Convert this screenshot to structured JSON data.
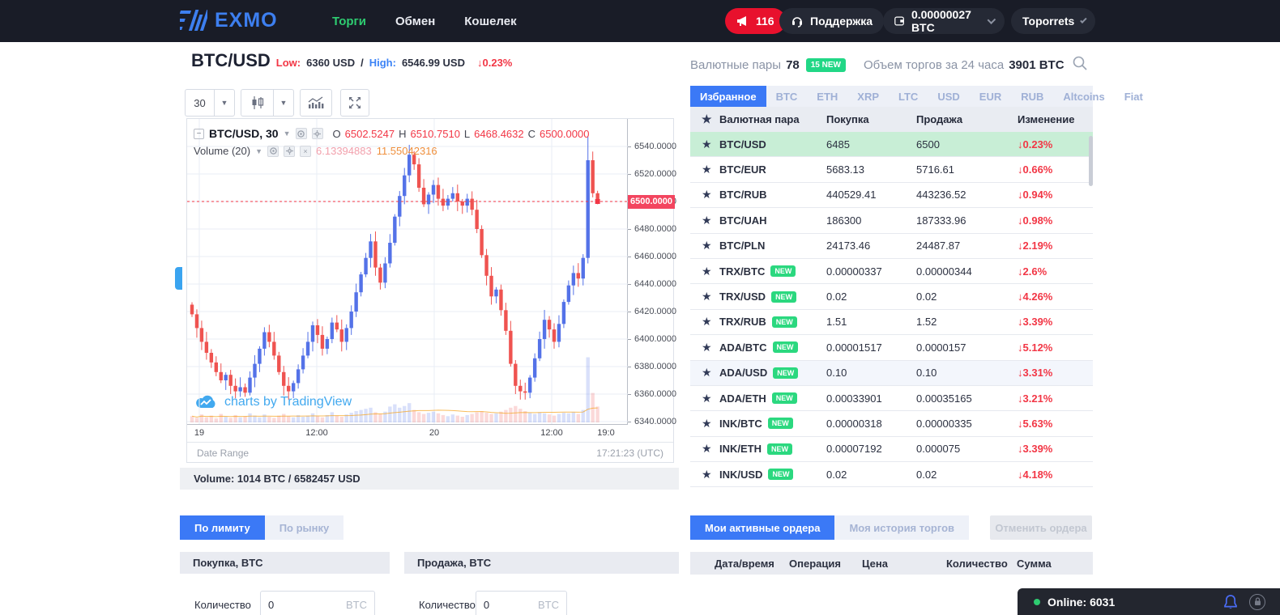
{
  "header": {
    "brand": "EXMO",
    "nav": [
      {
        "label": "Торги",
        "active": true
      },
      {
        "label": "Обмен",
        "active": false
      },
      {
        "label": "Кошелек",
        "active": false
      }
    ],
    "notification_count": "116",
    "support_label": "Поддержка",
    "wallet_balance": "0.00000027 BTC",
    "username": "Toporrets"
  },
  "pair_header": {
    "pair": "BTC/USD",
    "low_label": "Low:",
    "low_value": "6360 USD",
    "separator": "/",
    "high_label": "High:",
    "high_value": "6546.99 USD",
    "change": "↓0.23%"
  },
  "chart": {
    "toolbar": {
      "interval": "30"
    },
    "legend": {
      "title": "BTC/USD, 30",
      "o_label": "O",
      "o": "6502.5247",
      "h_label": "H",
      "h": "6510.7510",
      "l_label": "L",
      "l": "6468.4632",
      "c_label": "C",
      "c": "6500.0000",
      "volume_label": "Volume (20)",
      "volume_value_1": "6.13394883",
      "volume_value_2": "11.55042316"
    },
    "watermark": "charts by TradingView",
    "footer_left": "Date Range",
    "footer_right": "17:21:23 (UTC)",
    "last_price_label": "6500.0000"
  },
  "chart_data": {
    "type": "candlestick",
    "pair": "BTC/USD",
    "interval_minutes": 30,
    "y_axis": {
      "min": 6340,
      "max": 6540,
      "step": 20,
      "tick_labels": [
        "6540.0000",
        "6520.0000",
        "6500.0000",
        "6480.0000",
        "6460.0000",
        "6440.0000",
        "6420.0000",
        "6400.0000",
        "6380.0000",
        "6360.0000",
        "6340.0000"
      ]
    },
    "x_axis": {
      "tick_labels": [
        "19",
        "12:00",
        "20",
        "12:00",
        "19:0"
      ],
      "tick_positions": [
        15,
        160,
        305,
        450,
        517
      ]
    },
    "last_price": 6500,
    "open_first": 6425,
    "closes": [
      6418,
      6408,
      6398,
      6390,
      6383,
      6376,
      6370,
      6374,
      6366,
      6362,
      6365,
      6361,
      6372,
      6382,
      6393,
      6405,
      6398,
      6388,
      6376,
      6366,
      6362,
      6368,
      6378,
      6388,
      6398,
      6410,
      6403,
      6393,
      6400,
      6412,
      6407,
      6398,
      6408,
      6420,
      6434,
      6447,
      6459,
      6471,
      6452,
      6441,
      6455,
      6470,
      6489,
      6504,
      6519,
      6534,
      6527,
      6510,
      6498,
      6505,
      6512,
      6502,
      6497,
      6502,
      6506,
      6500,
      6497,
      6502,
      6494,
      6480,
      6461,
      6446,
      6431,
      6436,
      6421,
      6406,
      6382,
      6366,
      6362,
      6361,
      6372,
      6386,
      6400,
      6414,
      6407,
      6398,
      6411,
      6427,
      6439,
      6448,
      6444,
      6459,
      6530,
      6506,
      6500
    ],
    "volumes": [
      1.1,
      0.8,
      1.4,
      0.9,
      1.2,
      0.7,
      1.5,
      1.0,
      0.8,
      1.3,
      0.9,
      1.1,
      1.6,
      1.2,
      0.9,
      1.4,
      1.0,
      0.8,
      1.2,
      1.5,
      1.1,
      0.9,
      1.3,
      1.0,
      1.2,
      1.6,
      1.1,
      0.9,
      1.3,
      1.8,
      1.2,
      1.0,
      1.4,
      1.7,
      2.0,
      2.2,
      2.4,
      2.6,
      1.8,
      1.5,
      1.9,
      2.8,
      3.2,
      2.6,
      2.9,
      3.4,
      2.2,
      1.8,
      1.5,
      1.7,
      1.9,
      1.6,
      1.3,
      1.1,
      1.4,
      1.2,
      1.0,
      1.3,
      1.5,
      1.8,
      2.0,
      1.7,
      1.5,
      1.6,
      1.9,
      2.2,
      2.6,
      2.9,
      2.4,
      2.0,
      1.7,
      1.5,
      1.8,
      1.6,
      1.4,
      1.2,
      1.5,
      1.7,
      1.6,
      1.8,
      1.5,
      2.2,
      11.5,
      5.2,
      2.8
    ],
    "overrides": {
      "82": {
        "high": 6546.99
      },
      "67": {
        "low": 6360
      }
    },
    "colors": {
      "up": "#5472e8",
      "down": "#ef5350",
      "volume_up": "rgba(84,114,232,0.22)",
      "volume_down": "rgba(239,83,80,0.22)",
      "ma_line": "#f5a623",
      "last_price_line": "#f23645",
      "grid": "#e9eef5"
    }
  },
  "volume_summary": "Volume: 1014 BTC / 6582457 USD",
  "order_form": {
    "tabs": [
      {
        "label": "По лимиту",
        "active": true
      },
      {
        "label": "По рынку",
        "active": false
      }
    ],
    "buy_title": "Покупка, BTC",
    "sell_title": "Продажа, BTC",
    "quantity_label": "Количество",
    "quantity_value": "0",
    "unit": "BTC"
  },
  "pairs_panel": {
    "title": "Валютные пары",
    "count": "78",
    "new_badge": "15 NEW",
    "volume_label": "Объем торгов за 24 часа",
    "volume_value": "3901 BTC",
    "tabs": [
      {
        "label": "Избранное",
        "active": true
      },
      {
        "label": "BTC",
        "active": false
      },
      {
        "label": "ETH",
        "active": false
      },
      {
        "label": "XRP",
        "active": false
      },
      {
        "label": "LTC",
        "active": false
      },
      {
        "label": "USD",
        "active": false
      },
      {
        "label": "EUR",
        "active": false
      },
      {
        "label": "RUB",
        "active": false
      },
      {
        "label": "Altcoins",
        "active": false
      },
      {
        "label": "Fiat",
        "active": false
      }
    ],
    "columns": [
      "Валютная пара",
      "Покупка",
      "Продажа",
      "Изменение"
    ],
    "rows": [
      {
        "pair": "BTC/USD",
        "new": false,
        "buy": "6485",
        "sell": "6500",
        "change": "↓0.23%",
        "highlight": "green"
      },
      {
        "pair": "BTC/EUR",
        "new": false,
        "buy": "5683.13",
        "sell": "5716.61",
        "change": "↓0.66%",
        "highlight": ""
      },
      {
        "pair": "BTC/RUB",
        "new": false,
        "buy": "440529.41",
        "sell": "443236.52",
        "change": "↓0.94%",
        "highlight": ""
      },
      {
        "pair": "BTC/UAH",
        "new": false,
        "buy": "186300",
        "sell": "187333.96",
        "change": "↓0.98%",
        "highlight": ""
      },
      {
        "pair": "BTC/PLN",
        "new": false,
        "buy": "24173.46",
        "sell": "24487.87",
        "change": "↓2.19%",
        "highlight": ""
      },
      {
        "pair": "TRX/BTC",
        "new": true,
        "buy": "0.00000337",
        "sell": "0.00000344",
        "change": "↓2.6%",
        "highlight": ""
      },
      {
        "pair": "TRX/USD",
        "new": true,
        "buy": "0.02",
        "sell": "0.02",
        "change": "↓4.26%",
        "highlight": ""
      },
      {
        "pair": "TRX/RUB",
        "new": true,
        "buy": "1.51",
        "sell": "1.52",
        "change": "↓3.39%",
        "highlight": ""
      },
      {
        "pair": "ADA/BTC",
        "new": true,
        "buy": "0.00001517",
        "sell": "0.0000157",
        "change": "↓5.12%",
        "highlight": ""
      },
      {
        "pair": "ADA/USD",
        "new": true,
        "buy": "0.10",
        "sell": "0.10",
        "change": "↓3.31%",
        "highlight": "blue"
      },
      {
        "pair": "ADA/ETH",
        "new": true,
        "buy": "0.00033901",
        "sell": "0.00035165",
        "change": "↓3.21%",
        "highlight": ""
      },
      {
        "pair": "INK/BTC",
        "new": true,
        "buy": "0.00000318",
        "sell": "0.00000335",
        "change": "↓5.63%",
        "highlight": ""
      },
      {
        "pair": "INK/ETH",
        "new": true,
        "buy": "0.00007192",
        "sell": "0.000075",
        "change": "↓3.39%",
        "highlight": ""
      },
      {
        "pair": "INK/USD",
        "new": true,
        "buy": "0.02",
        "sell": "0.02",
        "change": "↓4.18%",
        "highlight": ""
      }
    ]
  },
  "orders_panel": {
    "tabs": [
      {
        "label": "Мои активные ордера",
        "active": true
      },
      {
        "label": "Моя история торгов",
        "active": false
      }
    ],
    "cancel_button": "Отменить ордера",
    "columns": [
      "Дата/время",
      "Операция",
      "Цена",
      "Количество",
      "Сумма"
    ]
  },
  "online_bar": {
    "label": "Online: 6031"
  }
}
